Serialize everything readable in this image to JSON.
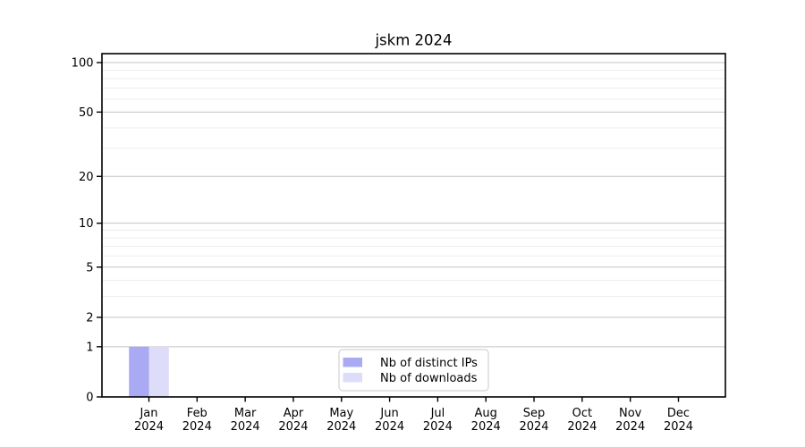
{
  "chart_data": {
    "type": "bar",
    "title": "jskm 2024",
    "categories": [
      "Jan 2024",
      "Feb 2024",
      "Mar 2024",
      "Apr 2024",
      "May 2024",
      "Jun 2024",
      "Jul 2024",
      "Aug 2024",
      "Sep 2024",
      "Oct 2024",
      "Nov 2024",
      "Dec 2024"
    ],
    "series": [
      {
        "name": "Nb of distinct IPs",
        "color": "#a9a9f4",
        "values": [
          1,
          0,
          0,
          0,
          0,
          0,
          0,
          0,
          0,
          0,
          0,
          0
        ]
      },
      {
        "name": "Nb of downloads",
        "color": "#dddcf9",
        "values": [
          1,
          0,
          0,
          0,
          0,
          0,
          0,
          0,
          0,
          0,
          0,
          0
        ]
      }
    ],
    "xlabel": "",
    "ylabel": "",
    "y_axis": {
      "scale": "log1p",
      "major_ticks": [
        0,
        1,
        2,
        5,
        10,
        20,
        50,
        100
      ],
      "minor_gridlines": [
        3,
        4,
        6,
        7,
        8,
        9,
        30,
        40,
        60,
        70,
        80,
        90
      ],
      "ylim": [
        0,
        113
      ]
    },
    "grid": true,
    "legend": {
      "position": "lower center"
    },
    "colors": {
      "grid_major": "#c3c3c3",
      "grid_minor": "#ededed",
      "axis": "#000000",
      "legend_border": "#c9c9c9",
      "background": "#ffffff"
    }
  }
}
